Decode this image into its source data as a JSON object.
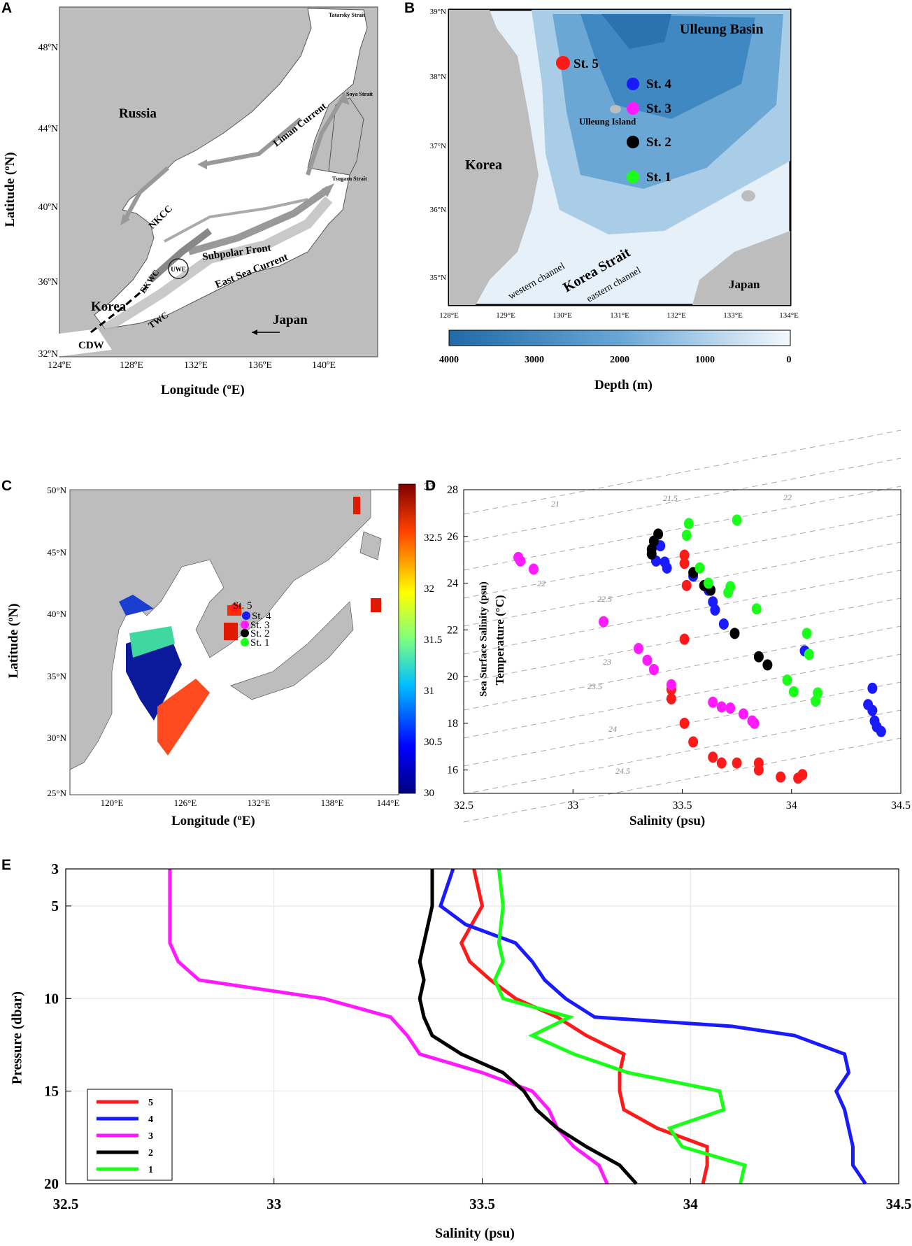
{
  "panels": {
    "a": {
      "label": "A",
      "xlabel": "Longitude (ºE)",
      "ylabel": "Latitude (ºN)",
      "xticks": [
        "124ºE",
        "128ºE",
        "132ºE",
        "136ºE",
        "140ºE"
      ],
      "yticks": [
        "48ºN",
        "44ºN",
        "40ºN",
        "36ºN",
        "32ºN"
      ],
      "place_names": {
        "russia": "Russia",
        "korea": "Korea",
        "japan": "Japan"
      },
      "currents": {
        "liman": "Liman Current",
        "nkcc": "NKCC",
        "subpolar": "Subpolar Front",
        "esc": "East Sea Current",
        "ekwc": "EKWC",
        "twc": "TWC",
        "cdw": "CDW",
        "uwe": "UWE"
      },
      "straits": {
        "tatarsky": "Tatarsky Strait",
        "soya": "Soya Strait",
        "tsugaru": "Tsugaru Strait"
      }
    },
    "b": {
      "label": "B",
      "xlabel": "Depth (m)",
      "xticks": [
        "128°E",
        "129°E",
        "130°E",
        "131°E",
        "132°E",
        "133°E",
        "134°E"
      ],
      "yticks": [
        "39°N",
        "38°N",
        "37°N",
        "36°N",
        "35°N"
      ],
      "colorbar_ticks": [
        "4000",
        "3000",
        "2000",
        "1000",
        "0"
      ],
      "place_names": {
        "basin": "Ulleung Basin",
        "korea": "Korea",
        "japan": "Japan",
        "island": "Ulleung Island",
        "strait": "Korea Strait",
        "west": "western channel",
        "east": "eastern channel"
      },
      "stations": [
        {
          "name": "St. 5",
          "color": "#ff1a1a"
        },
        {
          "name": "St. 4",
          "color": "#1a1aff"
        },
        {
          "name": "St. 3",
          "color": "#ff1aff"
        },
        {
          "name": "St. 2",
          "color": "#000000"
        },
        {
          "name": "St. 1",
          "color": "#1aff1a"
        }
      ]
    },
    "c": {
      "label": "C",
      "xlabel": "Longitude (ºE)",
      "ylabel": "Latitude (ºN)",
      "xticks": [
        "120°E",
        "126°E",
        "132°E",
        "138°E",
        "144°E"
      ],
      "yticks": [
        "50°N",
        "45°N",
        "40°N",
        "35°N",
        "30°N",
        "25°N"
      ],
      "colorbar_label": "Sea Surface Salinity (psu)",
      "colorbar_ticks": [
        "33",
        "32.5",
        "32",
        "31.5",
        "31",
        "30.5",
        "30"
      ],
      "stations": [
        "St. 5",
        "St. 4",
        "St. 3",
        "St. 2",
        "St. 1"
      ]
    },
    "d": {
      "label": "D",
      "xlabel": "Salinity (psu)",
      "ylabel": "Temperature (°C)",
      "density_labels": [
        "21",
        "21.5",
        "22",
        "22",
        "22.5",
        "23",
        "23.5",
        "24",
        "24.5"
      ]
    },
    "e": {
      "label": "E",
      "xlabel": "Salinity (psu)",
      "ylabel": "Pressure (dbar)",
      "legend": [
        "5",
        "4",
        "3",
        "2",
        "1"
      ]
    }
  },
  "chart_data": [
    {
      "panel": "D",
      "type": "scatter",
      "xlabel": "Salinity (psu)",
      "ylabel": "Temperature (°C)",
      "xlim": [
        32.5,
        34.5
      ],
      "ylim": [
        15,
        28
      ],
      "xticks": [
        32.5,
        33,
        33.5,
        34,
        34.5
      ],
      "yticks": [
        16,
        18,
        20,
        22,
        24,
        26,
        28
      ],
      "grid": false,
      "series": [
        {
          "color": "#ff1a1a",
          "points": [
            [
              33.51,
              25.2
            ],
            [
              33.51,
              24.85
            ],
            [
              33.52,
              23.9
            ],
            [
              33.51,
              21.6
            ],
            [
              33.45,
              19.45
            ],
            [
              33.45,
              19.05
            ],
            [
              33.51,
              18.0
            ],
            [
              33.55,
              17.2
            ],
            [
              33.64,
              16.55
            ],
            [
              33.68,
              16.3
            ],
            [
              33.75,
              16.3
            ],
            [
              33.85,
              16.3
            ],
            [
              33.85,
              16.0
            ],
            [
              33.95,
              15.7
            ],
            [
              34.03,
              15.65
            ],
            [
              34.05,
              15.8
            ]
          ]
        },
        {
          "color": "#1a1aff",
          "points": [
            [
              33.4,
              25.6
            ],
            [
              33.38,
              24.95
            ],
            [
              33.42,
              24.9
            ],
            [
              33.43,
              24.65
            ],
            [
              33.55,
              24.3
            ],
            [
              33.62,
              23.7
            ],
            [
              33.64,
              23.2
            ],
            [
              33.65,
              22.85
            ],
            [
              33.69,
              22.25
            ],
            [
              34.06,
              21.1
            ],
            [
              34.37,
              19.5
            ],
            [
              34.35,
              18.8
            ],
            [
              34.37,
              18.55
            ],
            [
              34.38,
              18.1
            ],
            [
              34.39,
              17.85
            ],
            [
              34.41,
              17.65
            ]
          ]
        },
        {
          "color": "#ff1aff",
          "points": [
            [
              32.75,
              25.1
            ],
            [
              32.76,
              24.95
            ],
            [
              32.82,
              24.6
            ],
            [
              33.14,
              22.35
            ],
            [
              33.3,
              21.2
            ],
            [
              33.34,
              20.7
            ],
            [
              33.37,
              20.3
            ],
            [
              33.45,
              19.65
            ],
            [
              33.64,
              18.9
            ],
            [
              33.68,
              18.7
            ],
            [
              33.72,
              18.65
            ],
            [
              33.78,
              18.4
            ],
            [
              33.82,
              18.1
            ],
            [
              33.83,
              18.0
            ]
          ]
        },
        {
          "color": "#000000",
          "points": [
            [
              33.39,
              26.1
            ],
            [
              33.37,
              25.8
            ],
            [
              33.36,
              25.45
            ],
            [
              33.36,
              25.25
            ],
            [
              33.55,
              24.45
            ],
            [
              33.6,
              23.9
            ],
            [
              33.63,
              23.7
            ],
            [
              33.74,
              21.85
            ],
            [
              33.85,
              20.85
            ],
            [
              33.89,
              20.5
            ]
          ]
        },
        {
          "color": "#1aff1a",
          "points": [
            [
              33.53,
              26.55
            ],
            [
              33.52,
              26.05
            ],
            [
              33.75,
              26.7
            ],
            [
              33.58,
              24.65
            ],
            [
              33.62,
              24.0
            ],
            [
              33.72,
              23.85
            ],
            [
              33.71,
              23.6
            ],
            [
              33.84,
              22.9
            ],
            [
              34.07,
              21.85
            ],
            [
              34.08,
              20.95
            ],
            [
              33.98,
              19.85
            ],
            [
              34.01,
              19.35
            ],
            [
              34.12,
              19.3
            ],
            [
              34.11,
              18.95
            ]
          ]
        }
      ]
    },
    {
      "panel": "E",
      "type": "line",
      "xlabel": "Salinity (psu)",
      "ylabel": "Pressure (dbar)",
      "xlim": [
        32.5,
        34.5
      ],
      "ylim": [
        20,
        3
      ],
      "xticks": [
        32.5,
        33,
        33.5,
        34,
        34.5
      ],
      "yticks": [
        3,
        5,
        10,
        15,
        20
      ],
      "grid": true,
      "legend_position": "bottom-left",
      "series": [
        {
          "name": "5",
          "color": "#ff1a1a",
          "points": [
            [
              33.48,
              3
            ],
            [
              33.5,
              5
            ],
            [
              33.45,
              7
            ],
            [
              33.47,
              8
            ],
            [
              33.52,
              9
            ],
            [
              33.58,
              10
            ],
            [
              33.68,
              11
            ],
            [
              33.75,
              12
            ],
            [
              33.84,
              13
            ],
            [
              33.83,
              14
            ],
            [
              33.83,
              15
            ],
            [
              33.84,
              16
            ],
            [
              33.92,
              17
            ],
            [
              34.04,
              18
            ],
            [
              34.04,
              19
            ],
            [
              34.03,
              20
            ]
          ]
        },
        {
          "name": "4",
          "color": "#1a1aff",
          "points": [
            [
              33.43,
              3
            ],
            [
              33.4,
              5
            ],
            [
              33.46,
              6
            ],
            [
              33.58,
              7
            ],
            [
              33.62,
              8
            ],
            [
              33.65,
              9
            ],
            [
              33.7,
              10
            ],
            [
              33.77,
              11
            ],
            [
              34.1,
              11.5
            ],
            [
              34.25,
              12
            ],
            [
              34.37,
              13
            ],
            [
              34.38,
              14
            ],
            [
              34.35,
              15
            ],
            [
              34.37,
              16
            ],
            [
              34.38,
              17
            ],
            [
              34.39,
              18
            ],
            [
              34.39,
              19
            ],
            [
              34.42,
              20
            ]
          ]
        },
        {
          "name": "3",
          "color": "#ff1aff",
          "points": [
            [
              32.75,
              3
            ],
            [
              32.75,
              5
            ],
            [
              32.75,
              7
            ],
            [
              32.77,
              8
            ],
            [
              32.82,
              9
            ],
            [
              33.12,
              10
            ],
            [
              33.28,
              11
            ],
            [
              33.32,
              12
            ],
            [
              33.35,
              13
            ],
            [
              33.5,
              14
            ],
            [
              33.62,
              15
            ],
            [
              33.66,
              16
            ],
            [
              33.68,
              17
            ],
            [
              33.72,
              18
            ],
            [
              33.78,
              19
            ],
            [
              33.8,
              20
            ]
          ]
        },
        {
          "name": "2",
          "color": "#000000",
          "points": [
            [
              33.38,
              3
            ],
            [
              33.38,
              5
            ],
            [
              33.36,
              7
            ],
            [
              33.35,
              8
            ],
            [
              33.36,
              9
            ],
            [
              33.35,
              10
            ],
            [
              33.36,
              11
            ],
            [
              33.38,
              12
            ],
            [
              33.45,
              13
            ],
            [
              33.55,
              14
            ],
            [
              33.6,
              15
            ],
            [
              33.63,
              16
            ],
            [
              33.68,
              17
            ],
            [
              33.75,
              18
            ],
            [
              33.83,
              19
            ],
            [
              33.87,
              20
            ]
          ]
        },
        {
          "name": "1",
          "color": "#1aff1a",
          "points": [
            [
              33.54,
              3
            ],
            [
              33.55,
              5
            ],
            [
              33.54,
              7
            ],
            [
              33.55,
              8
            ],
            [
              33.53,
              9
            ],
            [
              33.55,
              10
            ],
            [
              33.71,
              11
            ],
            [
              33.62,
              12
            ],
            [
              33.72,
              13
            ],
            [
              33.85,
              14
            ],
            [
              34.07,
              15
            ],
            [
              34.08,
              16
            ],
            [
              33.95,
              17
            ],
            [
              33.98,
              18
            ],
            [
              34.13,
              19
            ],
            [
              34.12,
              20
            ]
          ]
        }
      ]
    }
  ]
}
